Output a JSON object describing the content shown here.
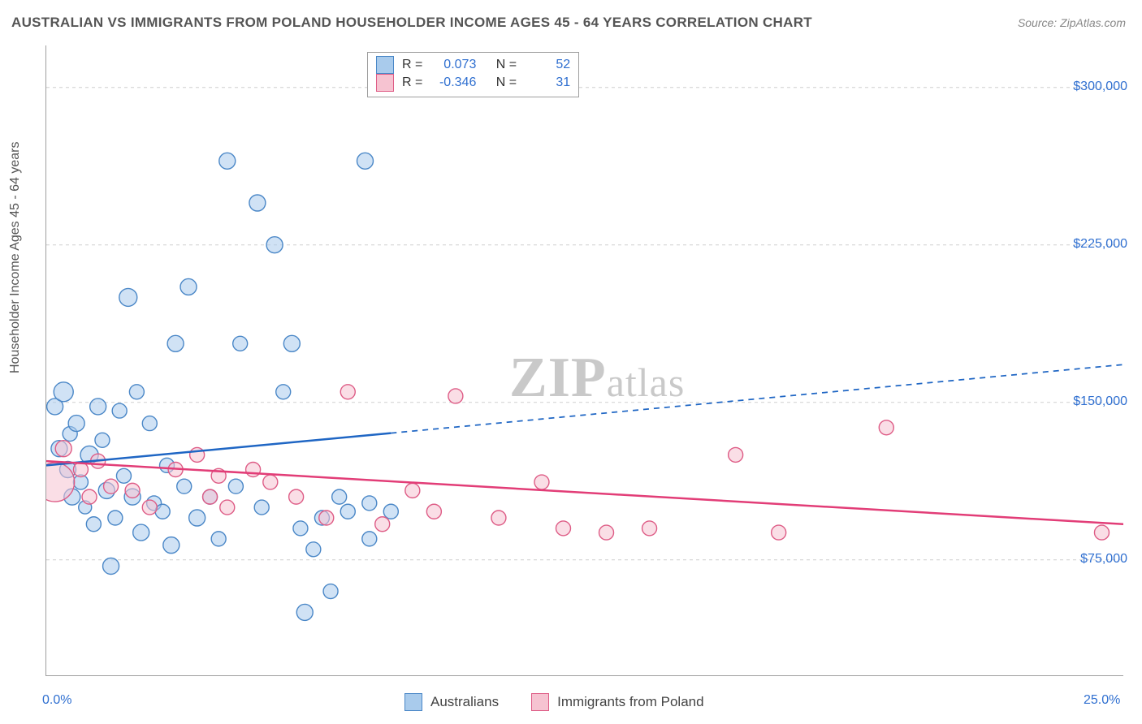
{
  "title": "AUSTRALIAN VS IMMIGRANTS FROM POLAND HOUSEHOLDER INCOME AGES 45 - 64 YEARS CORRELATION CHART",
  "source": "Source: ZipAtlas.com",
  "ylabel": "Householder Income Ages 45 - 64 years",
  "watermark": {
    "brand_prefix": "ZIP",
    "brand_suffix": "atlas"
  },
  "chart": {
    "type": "scatter",
    "background_color": "#ffffff",
    "grid_color": "#cfcfcf",
    "axis_color": "#9e9e9e",
    "title_color": "#555555",
    "label_color": "#555555",
    "tick_label_color": "#2f6fd0",
    "title_fontsize": 17,
    "label_fontsize": 16,
    "tick_fontsize": 16,
    "xlim": [
      0,
      25
    ],
    "ylim": [
      20000,
      320000
    ],
    "xticks": [
      0,
      5,
      10,
      15,
      20,
      25
    ],
    "yticks": [
      75000,
      150000,
      225000,
      300000
    ],
    "xgrid_lines": [
      0,
      75000,
      150000,
      225000,
      300000
    ],
    "xtick_labels": {
      "0": "0.0%",
      "25": "25.0%"
    },
    "ytick_format": "currency",
    "marker_radius_base": 9,
    "marker_opacity": 0.55,
    "series": [
      {
        "id": "australians",
        "label": "Australians",
        "color_fill": "#a9cbec",
        "color_stroke": "#4a87c7",
        "R": "0.073",
        "N": "52",
        "trend": {
          "color": "#1f66c4",
          "width": 2.5,
          "x_solid_end": 8.0,
          "y_start": 120000,
          "y_end": 168000
        },
        "points": [
          {
            "x": 0.2,
            "y": 148000,
            "r": 10
          },
          {
            "x": 0.3,
            "y": 128000,
            "r": 10
          },
          {
            "x": 0.4,
            "y": 155000,
            "r": 12
          },
          {
            "x": 0.5,
            "y": 118000,
            "r": 10
          },
          {
            "x": 0.55,
            "y": 135000,
            "r": 9
          },
          {
            "x": 0.6,
            "y": 105000,
            "r": 10
          },
          {
            "x": 0.7,
            "y": 140000,
            "r": 10
          },
          {
            "x": 0.8,
            "y": 112000,
            "r": 9
          },
          {
            "x": 0.9,
            "y": 100000,
            "r": 8
          },
          {
            "x": 1.0,
            "y": 125000,
            "r": 11
          },
          {
            "x": 1.1,
            "y": 92000,
            "r": 9
          },
          {
            "x": 1.2,
            "y": 148000,
            "r": 10
          },
          {
            "x": 1.3,
            "y": 132000,
            "r": 9
          },
          {
            "x": 1.4,
            "y": 108000,
            "r": 10
          },
          {
            "x": 1.5,
            "y": 72000,
            "r": 10
          },
          {
            "x": 1.6,
            "y": 95000,
            "r": 9
          },
          {
            "x": 1.7,
            "y": 146000,
            "r": 9
          },
          {
            "x": 1.8,
            "y": 115000,
            "r": 9
          },
          {
            "x": 1.9,
            "y": 200000,
            "r": 11
          },
          {
            "x": 2.0,
            "y": 105000,
            "r": 10
          },
          {
            "x": 2.1,
            "y": 155000,
            "r": 9
          },
          {
            "x": 2.2,
            "y": 88000,
            "r": 10
          },
          {
            "x": 2.4,
            "y": 140000,
            "r": 9
          },
          {
            "x": 2.5,
            "y": 102000,
            "r": 9
          },
          {
            "x": 2.7,
            "y": 98000,
            "r": 9
          },
          {
            "x": 2.8,
            "y": 120000,
            "r": 9
          },
          {
            "x": 2.9,
            "y": 82000,
            "r": 10
          },
          {
            "x": 3.0,
            "y": 178000,
            "r": 10
          },
          {
            "x": 3.2,
            "y": 110000,
            "r": 9
          },
          {
            "x": 3.3,
            "y": 205000,
            "r": 10
          },
          {
            "x": 3.5,
            "y": 95000,
            "r": 10
          },
          {
            "x": 3.8,
            "y": 105000,
            "r": 9
          },
          {
            "x": 4.0,
            "y": 85000,
            "r": 9
          },
          {
            "x": 4.2,
            "y": 265000,
            "r": 10
          },
          {
            "x": 4.4,
            "y": 110000,
            "r": 9
          },
          {
            "x": 4.5,
            "y": 178000,
            "r": 9
          },
          {
            "x": 4.9,
            "y": 245000,
            "r": 10
          },
          {
            "x": 5.0,
            "y": 100000,
            "r": 9
          },
          {
            "x": 5.3,
            "y": 225000,
            "r": 10
          },
          {
            "x": 5.5,
            "y": 155000,
            "r": 9
          },
          {
            "x": 5.7,
            "y": 178000,
            "r": 10
          },
          {
            "x": 5.9,
            "y": 90000,
            "r": 9
          },
          {
            "x": 6.0,
            "y": 50000,
            "r": 10
          },
          {
            "x": 6.2,
            "y": 80000,
            "r": 9
          },
          {
            "x": 6.4,
            "y": 95000,
            "r": 9
          },
          {
            "x": 6.6,
            "y": 60000,
            "r": 9
          },
          {
            "x": 6.8,
            "y": 105000,
            "r": 9
          },
          {
            "x": 7.0,
            "y": 98000,
            "r": 9
          },
          {
            "x": 7.4,
            "y": 265000,
            "r": 10
          },
          {
            "x": 7.5,
            "y": 85000,
            "r": 9
          },
          {
            "x": 7.5,
            "y": 102000,
            "r": 9
          },
          {
            "x": 8.0,
            "y": 98000,
            "r": 9
          }
        ]
      },
      {
        "id": "poland",
        "label": "Immigrants from Poland",
        "color_fill": "#f6c3d1",
        "color_stroke": "#de5c86",
        "R": "-0.346",
        "N": "31",
        "trend": {
          "color": "#e23d77",
          "width": 2.5,
          "x_solid_end": 25.0,
          "y_start": 122000,
          "y_end": 92000
        },
        "points": [
          {
            "x": 0.2,
            "y": 112000,
            "r": 24
          },
          {
            "x": 0.4,
            "y": 128000,
            "r": 10
          },
          {
            "x": 0.8,
            "y": 118000,
            "r": 9
          },
          {
            "x": 1.0,
            "y": 105000,
            "r": 9
          },
          {
            "x": 1.2,
            "y": 122000,
            "r": 9
          },
          {
            "x": 1.5,
            "y": 110000,
            "r": 9
          },
          {
            "x": 2.0,
            "y": 108000,
            "r": 9
          },
          {
            "x": 2.4,
            "y": 100000,
            "r": 9
          },
          {
            "x": 3.0,
            "y": 118000,
            "r": 9
          },
          {
            "x": 3.5,
            "y": 125000,
            "r": 9
          },
          {
            "x": 3.8,
            "y": 105000,
            "r": 9
          },
          {
            "x": 4.0,
            "y": 115000,
            "r": 9
          },
          {
            "x": 4.2,
            "y": 100000,
            "r": 9
          },
          {
            "x": 4.8,
            "y": 118000,
            "r": 9
          },
          {
            "x": 5.2,
            "y": 112000,
            "r": 9
          },
          {
            "x": 5.8,
            "y": 105000,
            "r": 9
          },
          {
            "x": 6.5,
            "y": 95000,
            "r": 9
          },
          {
            "x": 7.0,
            "y": 155000,
            "r": 9
          },
          {
            "x": 7.8,
            "y": 92000,
            "r": 9
          },
          {
            "x": 8.5,
            "y": 108000,
            "r": 9
          },
          {
            "x": 9.0,
            "y": 98000,
            "r": 9
          },
          {
            "x": 9.5,
            "y": 153000,
            "r": 9
          },
          {
            "x": 10.5,
            "y": 95000,
            "r": 9
          },
          {
            "x": 11.5,
            "y": 112000,
            "r": 9
          },
          {
            "x": 12.0,
            "y": 90000,
            "r": 9
          },
          {
            "x": 13.0,
            "y": 88000,
            "r": 9
          },
          {
            "x": 14.0,
            "y": 90000,
            "r": 9
          },
          {
            "x": 16.0,
            "y": 125000,
            "r": 9
          },
          {
            "x": 17.0,
            "y": 88000,
            "r": 9
          },
          {
            "x": 19.5,
            "y": 138000,
            "r": 9
          },
          {
            "x": 24.5,
            "y": 88000,
            "r": 9
          }
        ]
      }
    ]
  },
  "legend_stats_labels": {
    "R": "R =",
    "N": "N ="
  }
}
